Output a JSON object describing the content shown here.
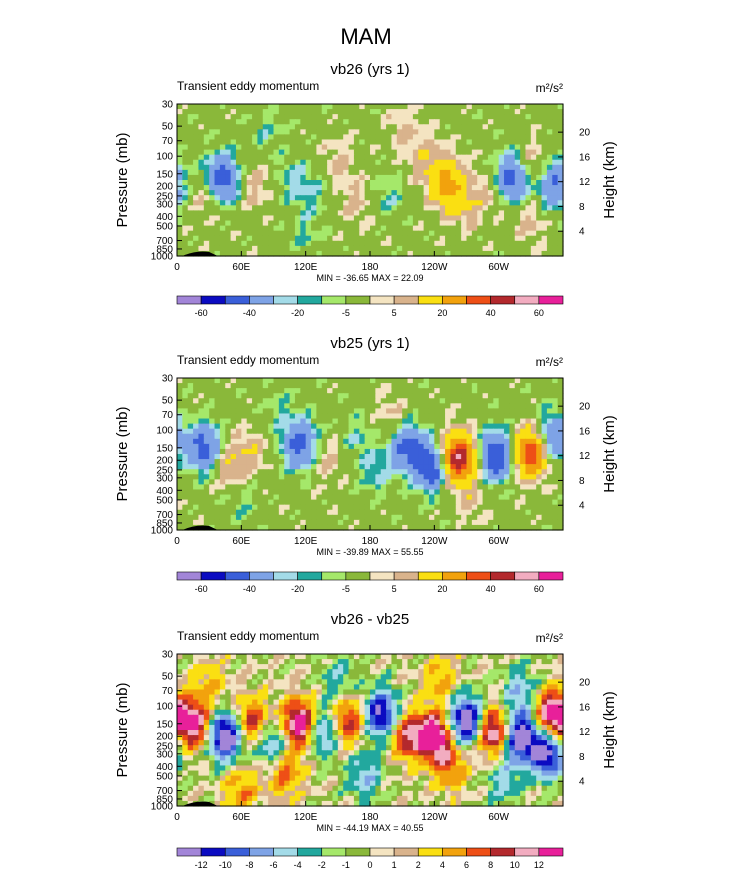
{
  "figure": {
    "title": "MAM"
  },
  "chart_data": [
    {
      "type": "heatmap",
      "title": "vb26 (yrs 1)",
      "subtitle_left": "Transient eddy momentum",
      "units": "m²/s²",
      "ylabel": "Pressure (mb)",
      "ylabel_right": "Height (km)",
      "x_ticks": [
        "0",
        "60E",
        "120E",
        "180",
        "120W",
        "60W"
      ],
      "x_tick_lons": [
        0,
        60,
        120,
        180,
        240,
        300
      ],
      "xlim": [
        0,
        360
      ],
      "y_ticks": [
        "30",
        "50",
        "70",
        "100",
        "150",
        "200",
        "250",
        "300",
        "400",
        "500",
        "700",
        "850",
        "1000"
      ],
      "y_tick_values": [
        30,
        50,
        70,
        100,
        150,
        200,
        250,
        300,
        400,
        500,
        700,
        850,
        1000
      ],
      "ylim": [
        1000,
        30
      ],
      "right_ticks": [
        "4",
        "8",
        "12",
        "16",
        "20"
      ],
      "right_tick_values": [
        4,
        8,
        12,
        16,
        20
      ],
      "min_max": "MIN = -36.65  MAX =  22.09",
      "levels_labels": [
        "-60",
        "-40",
        "-20",
        "-5",
        "5",
        "20",
        "40",
        "60"
      ],
      "colors": [
        "#a285d8",
        "#0b0bc1",
        "#3a5fd9",
        "#7ea3e6",
        "#a3dbe8",
        "#22a89e",
        "#a5e86a",
        "#8ab83a",
        "#f4e4c1",
        "#d9b38c",
        "#fadf12",
        "#f2a20d",
        "#ee4f16",
        "#b3292d",
        "#f2acc0",
        "#e8209a"
      ],
      "blobs": [
        {
          "lon": 42,
          "p": 170,
          "v": -28
        },
        {
          "lon": 28,
          "p": 250,
          "v": 8
        },
        {
          "lon": 72,
          "p": 200,
          "v": 7
        },
        {
          "lon": 108,
          "p": 170,
          "v": -7
        },
        {
          "lon": 128,
          "p": 230,
          "v": -6
        },
        {
          "lon": 150,
          "p": 120,
          "v": 7
        },
        {
          "lon": 168,
          "p": 300,
          "v": 6
        },
        {
          "lon": 198,
          "p": 250,
          "v": -6
        },
        {
          "lon": 232,
          "p": 110,
          "v": 9
        },
        {
          "lon": 252,
          "p": 190,
          "v": 24
        },
        {
          "lon": 268,
          "p": 320,
          "v": 8
        },
        {
          "lon": 290,
          "p": 230,
          "v": 6
        },
        {
          "lon": 313,
          "p": 160,
          "v": -27
        },
        {
          "lon": 328,
          "p": 120,
          "v": 10
        },
        {
          "lon": 352,
          "p": 190,
          "v": -20
        },
        {
          "lon": 85,
          "p": 60,
          "v": -5
        },
        {
          "lon": 210,
          "p": 55,
          "v": 6
        },
        {
          "lon": 120,
          "p": 600,
          "v": -5
        },
        {
          "lon": 330,
          "p": 450,
          "v": 6
        }
      ]
    },
    {
      "type": "heatmap",
      "title": "vb25 (yrs 1)",
      "subtitle_left": "Transient eddy momentum",
      "units": "m²/s²",
      "ylabel": "Pressure (mb)",
      "ylabel_right": "Height (km)",
      "x_ticks": [
        "0",
        "60E",
        "120E",
        "180",
        "120W",
        "60W"
      ],
      "x_tick_lons": [
        0,
        60,
        120,
        180,
        240,
        300
      ],
      "xlim": [
        0,
        360
      ],
      "y_ticks": [
        "30",
        "50",
        "70",
        "100",
        "150",
        "200",
        "250",
        "300",
        "400",
        "500",
        "700",
        "850",
        "1000"
      ],
      "y_tick_values": [
        30,
        50,
        70,
        100,
        150,
        200,
        250,
        300,
        400,
        500,
        700,
        850,
        1000
      ],
      "ylim": [
        1000,
        30
      ],
      "right_ticks": [
        "4",
        "8",
        "12",
        "16",
        "20"
      ],
      "right_tick_values": [
        4,
        8,
        12,
        16,
        20
      ],
      "min_max": "MIN = -39.89  MAX =  55.55",
      "levels_labels": [
        "-60",
        "-40",
        "-20",
        "-5",
        "5",
        "20",
        "40",
        "60"
      ],
      "colors": [
        "#a285d8",
        "#0b0bc1",
        "#3a5fd9",
        "#7ea3e6",
        "#a3dbe8",
        "#22a89e",
        "#a5e86a",
        "#8ab83a",
        "#f4e4c1",
        "#d9b38c",
        "#fadf12",
        "#f2a20d",
        "#ee4f16",
        "#b3292d",
        "#f2acc0",
        "#e8209a"
      ],
      "blobs": [
        {
          "lon": 25,
          "p": 150,
          "v": -25
        },
        {
          "lon": 48,
          "p": 230,
          "v": 10
        },
        {
          "lon": 68,
          "p": 160,
          "v": 8
        },
        {
          "lon": 115,
          "p": 140,
          "v": -26
        },
        {
          "lon": 140,
          "p": 200,
          "v": 7
        },
        {
          "lon": 168,
          "p": 120,
          "v": -6
        },
        {
          "lon": 185,
          "p": 260,
          "v": -8
        },
        {
          "lon": 215,
          "p": 150,
          "v": -24
        },
        {
          "lon": 238,
          "p": 230,
          "v": -30
        },
        {
          "lon": 262,
          "p": 190,
          "v": 50
        },
        {
          "lon": 298,
          "p": 180,
          "v": -32
        },
        {
          "lon": 330,
          "p": 170,
          "v": 40
        },
        {
          "lon": 350,
          "p": 120,
          "v": -22
        },
        {
          "lon": 95,
          "p": 60,
          "v": -5
        },
        {
          "lon": 200,
          "p": 70,
          "v": 6
        },
        {
          "lon": 60,
          "p": 500,
          "v": -5
        },
        {
          "lon": 275,
          "p": 500,
          "v": 6
        }
      ]
    },
    {
      "type": "heatmap",
      "title": "vb26 - vb25",
      "subtitle_left": "Transient eddy momentum",
      "units": "m²/s²",
      "ylabel": "Pressure (mb)",
      "ylabel_right": "Height (km)",
      "x_ticks": [
        "0",
        "60E",
        "120E",
        "180",
        "120W",
        "60W"
      ],
      "x_tick_lons": [
        0,
        60,
        120,
        180,
        240,
        300
      ],
      "xlim": [
        0,
        360
      ],
      "y_ticks": [
        "30",
        "50",
        "70",
        "100",
        "150",
        "200",
        "250",
        "300",
        "400",
        "500",
        "700",
        "850",
        "1000"
      ],
      "y_tick_values": [
        30,
        50,
        70,
        100,
        150,
        200,
        250,
        300,
        400,
        500,
        700,
        850,
        1000
      ],
      "ylim": [
        1000,
        30
      ],
      "right_ticks": [
        "4",
        "8",
        "12",
        "16",
        "20"
      ],
      "right_tick_values": [
        4,
        8,
        12,
        16,
        20
      ],
      "min_max": "MIN = -44.19  MAX =  40.55",
      "levels_labels": [
        "-12",
        "-10",
        "-8",
        "-6",
        "-4",
        "-2",
        "-1",
        "0",
        "1",
        "2",
        "4",
        "6",
        "8",
        "10",
        "12"
      ],
      "colors": [
        "#a285d8",
        "#0b0bc1",
        "#3a5fd9",
        "#7ea3e6",
        "#a3dbe8",
        "#22a89e",
        "#a5e86a",
        "#8ab83a",
        "#f4e4c1",
        "#d9b38c",
        "#fadf12",
        "#f2a20d",
        "#ee4f16",
        "#b3292d",
        "#f2acc0",
        "#e8209a"
      ],
      "blobs": [
        {
          "lon": 15,
          "p": 150,
          "v": 14
        },
        {
          "lon": 45,
          "p": 200,
          "v": -16
        },
        {
          "lon": 70,
          "p": 140,
          "v": 9
        },
        {
          "lon": 90,
          "p": 250,
          "v": -8
        },
        {
          "lon": 115,
          "p": 150,
          "v": 16
        },
        {
          "lon": 135,
          "p": 180,
          "v": -9
        },
        {
          "lon": 160,
          "p": 140,
          "v": 10
        },
        {
          "lon": 190,
          "p": 120,
          "v": -14
        },
        {
          "lon": 215,
          "p": 200,
          "v": 10
        },
        {
          "lon": 240,
          "p": 200,
          "v": 16
        },
        {
          "lon": 270,
          "p": 140,
          "v": -16
        },
        {
          "lon": 295,
          "p": 180,
          "v": 14
        },
        {
          "lon": 320,
          "p": 200,
          "v": -16
        },
        {
          "lon": 350,
          "p": 120,
          "v": 15
        },
        {
          "lon": 345,
          "p": 300,
          "v": -14
        },
        {
          "lon": 100,
          "p": 450,
          "v": 8
        },
        {
          "lon": 60,
          "p": 700,
          "v": 6
        },
        {
          "lon": 175,
          "p": 500,
          "v": -6
        },
        {
          "lon": 255,
          "p": 400,
          "v": 7
        },
        {
          "lon": 305,
          "p": 550,
          "v": -5
        },
        {
          "lon": 30,
          "p": 60,
          "v": 4
        },
        {
          "lon": 150,
          "p": 55,
          "v": -4
        },
        {
          "lon": 245,
          "p": 55,
          "v": 5
        },
        {
          "lon": 320,
          "p": 70,
          "v": -6
        }
      ]
    }
  ]
}
